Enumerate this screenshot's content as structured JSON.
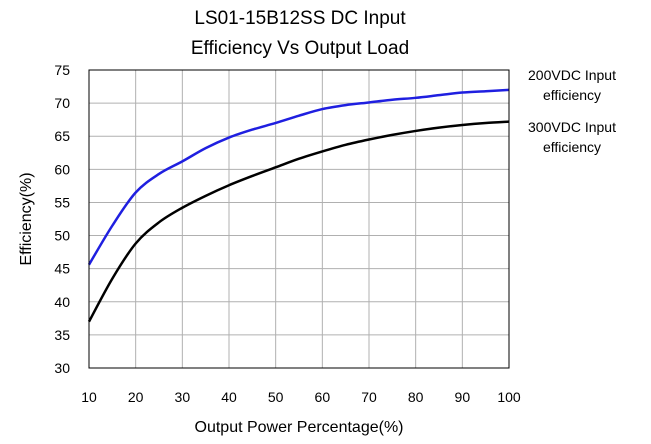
{
  "chart_data": {
    "type": "line",
    "title": [
      "LS01-15B12SS DC Input",
      "Efficiency Vs Output  Load"
    ],
    "xlabel": "Output Power Percentage(%)",
    "ylabel": "Efficiency(%)",
    "xlim": [
      10,
      100
    ],
    "ylim": [
      30,
      75
    ],
    "xticks": [
      "10",
      "20",
      "30",
      "40",
      "50",
      "60",
      "70",
      "80",
      "90",
      "100"
    ],
    "yticks": [
      "30",
      "35",
      "40",
      "45",
      "50",
      "55",
      "60",
      "65",
      "70",
      "75"
    ],
    "grid": true,
    "legend_position": "right",
    "series": [
      {
        "name": "200VDC Input efficiency",
        "legend_lines": [
          "200VDC Input",
          "efficiency"
        ],
        "color": "#1f1fe0",
        "x": [
          10,
          15,
          20,
          25,
          30,
          35,
          40,
          45,
          50,
          55,
          60,
          65,
          70,
          75,
          80,
          85,
          90,
          95,
          100
        ],
        "y": [
          45.6,
          51.5,
          56.5,
          59.3,
          61.2,
          63.2,
          64.8,
          66.0,
          67.0,
          68.1,
          69.1,
          69.7,
          70.1,
          70.5,
          70.8,
          71.2,
          71.6,
          71.8,
          72.0
        ]
      },
      {
        "name": "300VDC Input efficiency",
        "legend_lines": [
          "300VDC Input",
          "efficiency"
        ],
        "color": "#000000",
        "x": [
          10,
          15,
          20,
          25,
          30,
          35,
          40,
          45,
          50,
          55,
          60,
          65,
          70,
          75,
          80,
          85,
          90,
          95,
          100
        ],
        "y": [
          37.0,
          43.5,
          48.8,
          52.0,
          54.2,
          56.0,
          57.6,
          59.0,
          60.3,
          61.6,
          62.7,
          63.7,
          64.5,
          65.2,
          65.8,
          66.3,
          66.7,
          67.0,
          67.2
        ]
      }
    ]
  }
}
